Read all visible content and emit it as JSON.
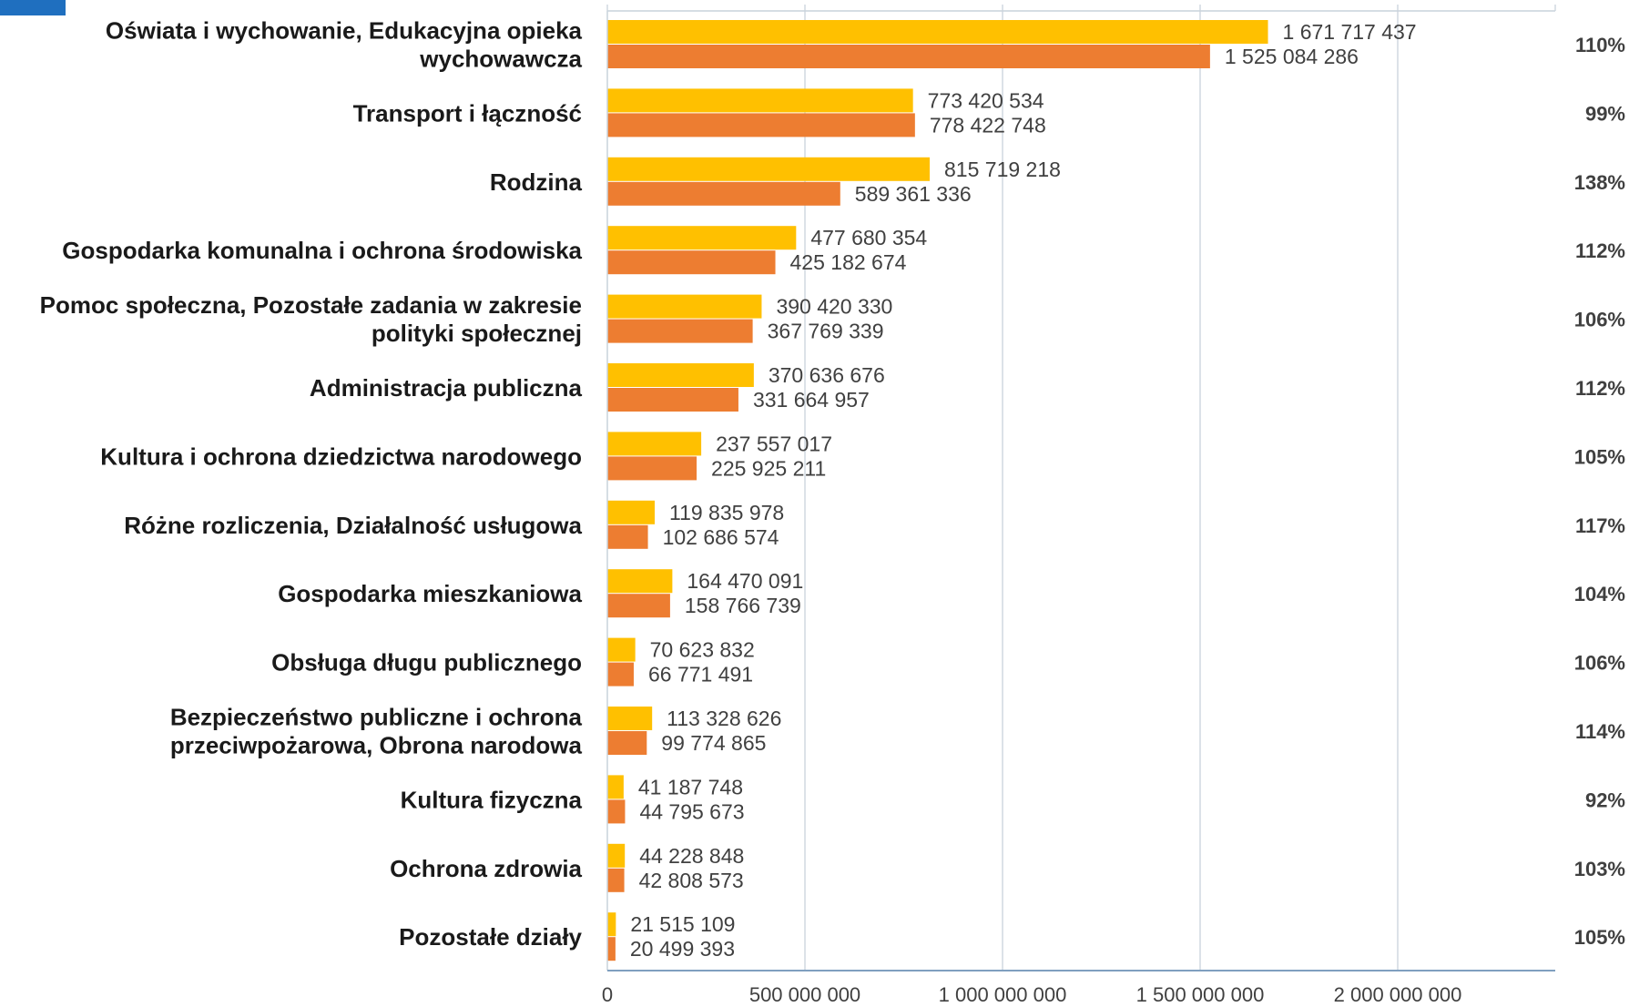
{
  "chart_data": {
    "type": "bar",
    "orientation": "horizontal",
    "categories": [
      [
        "Oświata i wychowanie, Edukacyjna opieka",
        "wychowawcza"
      ],
      [
        "Transport i łączność"
      ],
      [
        "Rodzina"
      ],
      [
        "Gospodarka komunalna i ochrona środowiska"
      ],
      [
        "Pomoc społeczna, Pozostałe zadania w zakresie",
        "polityki społecznej"
      ],
      [
        "Administracja publiczna"
      ],
      [
        "Kultura i ochrona dziedzictwa narodowego"
      ],
      [
        "Różne rozliczenia, Działalność usługowa"
      ],
      [
        "Gospodarka mieszkaniowa"
      ],
      [
        "Obsługa długu publicznego"
      ],
      [
        "Bezpieczeństwo publiczne i ochrona",
        "przeciwpożarowa, Obrona narodowa"
      ],
      [
        "Kultura fizyczna"
      ],
      [
        "Ochrona zdrowia"
      ],
      [
        "Pozostałe działy"
      ]
    ],
    "series": [
      {
        "color": "#ffc000",
        "values": [
          1671717437,
          773420534,
          815719218,
          477680354,
          390420330,
          370636676,
          237557017,
          119835978,
          164470091,
          70623832,
          113328626,
          41187748,
          44228848,
          21515109
        ],
        "labels": [
          "1 671 717 437",
          "773 420 534",
          "815 719 218",
          "477 680 354",
          "390 420 330",
          "370 636 676",
          "237 557 017",
          "119 835 978",
          "164 470 091",
          "70 623 832",
          "113 328 626",
          "41 187 748",
          "44 228 848",
          "21 515 109"
        ]
      },
      {
        "color": "#ed7d31",
        "values": [
          1525084286,
          778422748,
          589361336,
          425182674,
          367769339,
          331664957,
          225925211,
          102686574,
          158766739,
          66771491,
          99774865,
          44795673,
          42808573,
          20499393
        ],
        "labels": [
          "1 525 084 286",
          "778 422 748",
          "589 361 336",
          "425 182 674",
          "367 769 339",
          "331 664 957",
          "225 925 211",
          "102 686 574",
          "158 766 739",
          "66 771 491",
          "99 774 865",
          "44 795 673",
          "42 808 573",
          "20 499 393"
        ]
      }
    ],
    "ratios": [
      "110%",
      "99%",
      "138%",
      "112%",
      "106%",
      "112%",
      "105%",
      "117%",
      "104%",
      "106%",
      "114%",
      "92%",
      "103%",
      "105%"
    ],
    "xlim": [
      0,
      2400000000
    ],
    "xticks": [
      0,
      500000000,
      1000000000,
      1500000000,
      2000000000
    ],
    "xtick_labels": [
      "0",
      "500 000 000",
      "1 000 000 000",
      "1 500 000 000",
      "2 000 000 000"
    ],
    "grid": true,
    "title": "",
    "xlabel": "",
    "ylabel": ""
  },
  "colors": {
    "corner_block": "#1f6fbf",
    "gridline": "#c9d3dc",
    "axis": "#7f9fbf"
  }
}
